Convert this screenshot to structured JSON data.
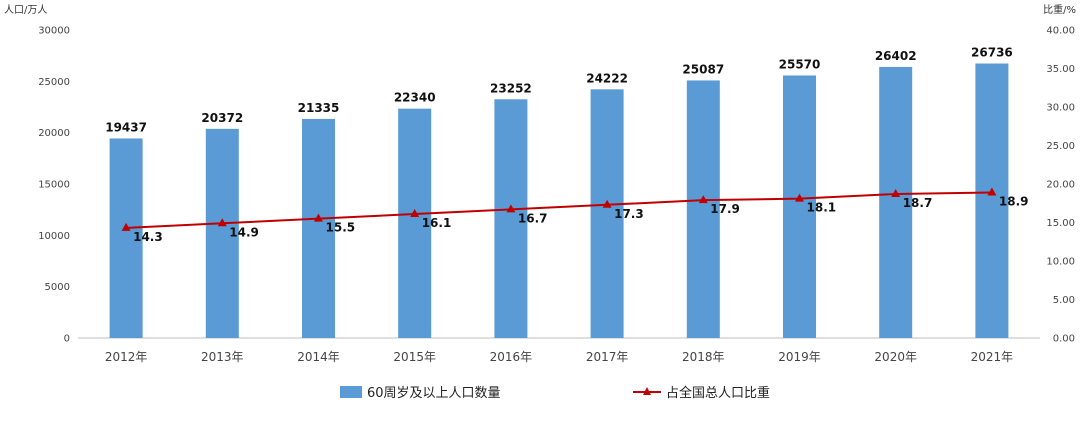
{
  "chart_data": {
    "type": "bar",
    "categories": [
      "2012年",
      "2013年",
      "2014年",
      "2015年",
      "2016年",
      "2017年",
      "2018年",
      "2019年",
      "2020年",
      "2021年"
    ],
    "series": [
      {
        "name": "60周岁及以上人口数量",
        "type": "bar",
        "axis": "left",
        "values": [
          19437,
          20372,
          21335,
          22340,
          23252,
          24222,
          25087,
          25570,
          26402,
          26736
        ]
      },
      {
        "name": "占全国总人口比重",
        "type": "line",
        "axis": "right",
        "values": [
          14.3,
          14.9,
          15.5,
          16.1,
          16.7,
          17.3,
          17.9,
          18.1,
          18.7,
          18.9
        ]
      }
    ],
    "ylabel": "人口/万人",
    "y2label": "比重/%",
    "ylim": [
      0,
      30000
    ],
    "y2lim": [
      0,
      40
    ],
    "yticks": [
      "0",
      "5000",
      "10000",
      "15000",
      "20000",
      "25000",
      "30000"
    ],
    "y2ticks": [
      "0.00",
      "5.00",
      "10.00",
      "15.00",
      "20.00",
      "25.00",
      "30.00",
      "35.00",
      "40.00"
    ],
    "grid": false,
    "legend_position": "bottom",
    "colors": {
      "bar": "#5b9bd5",
      "line": "#c00000"
    }
  }
}
